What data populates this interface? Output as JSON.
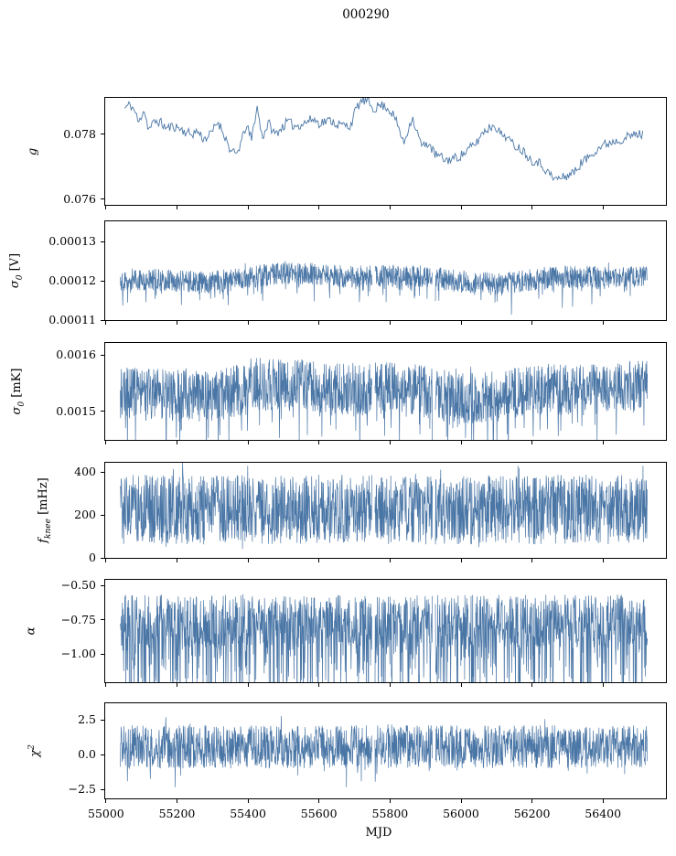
{
  "figure": {
    "title": "000290"
  },
  "chart_data": {
    "type": "line",
    "title": "000290",
    "xlabel": "MJD",
    "line_color": "#4a76a6",
    "x_axis": {
      "lim": [
        54995,
        56580
      ],
      "ticks": [
        55000,
        55200,
        55400,
        55600,
        55800,
        56000,
        56200,
        56400
      ],
      "tick_labels": [
        "55000",
        "55200",
        "55400",
        "55600",
        "55800",
        "56000",
        "56200",
        "56400"
      ]
    },
    "data_gaps": [
      [
        55749,
        55757
      ],
      [
        55920,
        55928
      ]
    ],
    "panels": [
      {
        "id": "g",
        "ylabel": {
          "sym": "g",
          "sub": "",
          "sup": "",
          "unit": ""
        },
        "ylim": [
          0.0758,
          0.07915
        ],
        "yticks": [
          {
            "v": 0.076,
            "label": "0.076"
          },
          {
            "v": 0.078,
            "label": "0.078"
          }
        ],
        "series": {
          "kind": "trend",
          "x_range": [
            55052,
            56512
          ],
          "points": 470,
          "jitter": 0.00015,
          "seed": 11,
          "trend": [
            [
              55052,
              0.0788
            ],
            [
              55068,
              0.07892
            ],
            [
              55082,
              0.0787
            ],
            [
              55092,
              0.07832
            ],
            [
              55106,
              0.0788
            ],
            [
              55120,
              0.07815
            ],
            [
              55138,
              0.0784
            ],
            [
              55152,
              0.07838
            ],
            [
              55170,
              0.07818
            ],
            [
              55188,
              0.07825
            ],
            [
              55205,
              0.0782
            ],
            [
              55222,
              0.07808
            ],
            [
              55240,
              0.078
            ],
            [
              55258,
              0.0781
            ],
            [
              55275,
              0.07785
            ],
            [
              55295,
              0.078
            ],
            [
              55315,
              0.0784
            ],
            [
              55333,
              0.078
            ],
            [
              55352,
              0.07745
            ],
            [
              55368,
              0.07738
            ],
            [
              55382,
              0.0778
            ],
            [
              55395,
              0.07828
            ],
            [
              55410,
              0.07784
            ],
            [
              55425,
              0.07886
            ],
            [
              55440,
              0.0779
            ],
            [
              55458,
              0.07835
            ],
            [
              55475,
              0.078
            ],
            [
              55495,
              0.0782
            ],
            [
              55512,
              0.0784
            ],
            [
              55530,
              0.07825
            ],
            [
              55548,
              0.0783
            ],
            [
              55565,
              0.07838
            ],
            [
              55582,
              0.07848
            ],
            [
              55600,
              0.07835
            ],
            [
              55618,
              0.0784
            ],
            [
              55635,
              0.07843
            ],
            [
              55652,
              0.0783
            ],
            [
              55670,
              0.07828
            ],
            [
              55688,
              0.07825
            ],
            [
              55705,
              0.0788
            ],
            [
              55722,
              0.07905
            ],
            [
              55738,
              0.07898
            ],
            [
              55755,
              0.07878
            ],
            [
              55772,
              0.0789
            ],
            [
              55790,
              0.07885
            ],
            [
              55808,
              0.07862
            ],
            [
              55825,
              0.0782
            ],
            [
              55838,
              0.0777
            ],
            [
              55850,
              0.0781
            ],
            [
              55862,
              0.07855
            ],
            [
              55878,
              0.078
            ],
            [
              55892,
              0.0776
            ],
            [
              55908,
              0.07775
            ],
            [
              55925,
              0.0774
            ],
            [
              55942,
              0.0773
            ],
            [
              55958,
              0.0772
            ],
            [
              55975,
              0.07725
            ],
            [
              55992,
              0.0773
            ],
            [
              56010,
              0.07742
            ],
            [
              56028,
              0.0776
            ],
            [
              56045,
              0.07775
            ],
            [
              56062,
              0.07808
            ],
            [
              56080,
              0.0782
            ],
            [
              56095,
              0.0783
            ],
            [
              56112,
              0.078
            ],
            [
              56128,
              0.07795
            ],
            [
              56145,
              0.0777
            ],
            [
              56162,
              0.0776
            ],
            [
              56180,
              0.07745
            ],
            [
              56198,
              0.0772
            ],
            [
              56215,
              0.07718
            ],
            [
              56232,
              0.077
            ],
            [
              56248,
              0.0768
            ],
            [
              56262,
              0.07662
            ],
            [
              56278,
              0.07665
            ],
            [
              56292,
              0.07668
            ],
            [
              56308,
              0.0768
            ],
            [
              56322,
              0.07685
            ],
            [
              56338,
              0.07712
            ],
            [
              56355,
              0.07725
            ],
            [
              56372,
              0.07745
            ],
            [
              56390,
              0.0776
            ],
            [
              56408,
              0.0777
            ],
            [
              56425,
              0.07778
            ],
            [
              56442,
              0.07782
            ],
            [
              56460,
              0.07788
            ],
            [
              56478,
              0.07795
            ],
            [
              56495,
              0.078
            ],
            [
              56512,
              0.078
            ]
          ]
        }
      },
      {
        "id": "sigma0-V",
        "ylabel": {
          "sym": "σ",
          "sub": "0",
          "sup": "",
          "unit": " [V]"
        },
        "ylim": [
          0.0001098,
          0.0001354
        ],
        "yticks": [
          {
            "v": 0.00011,
            "label": "0.00011"
          },
          {
            "v": 0.00012,
            "label": "0.00012"
          },
          {
            "v": 0.00013,
            "label": "0.00013"
          }
        ],
        "series": {
          "kind": "noise",
          "x_range": [
            55040,
            56525
          ],
          "points": 1700,
          "seed": 22,
          "center": 0.0001208,
          "core": 2.8e-06,
          "slow_amp": 9e-07,
          "slow_period": 950,
          "slow_phase": 4.0,
          "down_prob": 0.1,
          "down_max": 6.2e-06,
          "up_prob": 0.02,
          "up_max": 1.2e-06
        }
      },
      {
        "id": "sigma0-mK",
        "ylabel": {
          "sym": "σ",
          "sub": "0",
          "sup": "",
          "unit": " [mK]"
        },
        "ylim": [
          0.001448,
          0.001623
        ],
        "yticks": [
          {
            "v": 0.0015,
            "label": "0.0015"
          },
          {
            "v": 0.0016,
            "label": "0.0016"
          }
        ],
        "series": {
          "kind": "noise",
          "x_range": [
            55040,
            56525
          ],
          "points": 1700,
          "seed": 33,
          "center": 0.001537,
          "core": 4.6e-05,
          "slow_amp": 9e-06,
          "slow_period": 900,
          "slow_phase": 4.0,
          "down_prob": 0.12,
          "down_max": 8e-05,
          "up_prob": 0.03,
          "up_max": 2e-05
        }
      },
      {
        "id": "fknee",
        "ylabel": {
          "sym": "f",
          "sub": "knee",
          "sup": "",
          "unit": " [mHz]"
        },
        "ylim": [
          -4,
          447
        ],
        "yticks": [
          {
            "v": 0,
            "label": "0"
          },
          {
            "v": 200,
            "label": "200"
          },
          {
            "v": 400,
            "label": "400"
          }
        ],
        "series": {
          "kind": "noise",
          "x_range": [
            55040,
            56525
          ],
          "points": 1700,
          "seed": 44,
          "center": 225,
          "core": 162,
          "slow_amp": 0,
          "slow_period": 1000,
          "slow_phase": 0,
          "down_prob": 0.04,
          "down_max": 45,
          "up_prob": 0.05,
          "up_max": 62
        }
      },
      {
        "id": "alpha",
        "ylabel": {
          "sym": "α",
          "sub": "",
          "sup": "",
          "unit": ""
        },
        "ylim": [
          -1.213,
          -0.453
        ],
        "yticks": [
          {
            "v": -1.0,
            "label": "−1.00"
          },
          {
            "v": -0.75,
            "label": "−0.75"
          },
          {
            "v": -0.5,
            "label": "−0.50"
          }
        ],
        "series": {
          "kind": "noise",
          "x_range": [
            55040,
            56525
          ],
          "points": 1700,
          "seed": 55,
          "center": -0.76,
          "core": 0.195,
          "slow_amp": 0,
          "slow_period": 1000,
          "slow_phase": 0,
          "down_prob": 0.32,
          "down_max": 0.6,
          "up_prob": 0.02,
          "up_max": 0.03
        }
      },
      {
        "id": "chi2",
        "ylabel": {
          "sym": "χ",
          "sub": "",
          "sup": "2",
          "unit": ""
        },
        "ylim": [
          -3.22,
          3.75
        ],
        "yticks": [
          {
            "v": -2.5,
            "label": "−2.5"
          },
          {
            "v": 0.0,
            "label": "0.0"
          },
          {
            "v": 2.5,
            "label": "2.5"
          }
        ],
        "series": {
          "kind": "noise",
          "x_range": [
            55040,
            56525
          ],
          "points": 1700,
          "seed": 66,
          "center": 0.55,
          "core": 1.55,
          "slow_amp": 0,
          "slow_period": 1000,
          "slow_phase": 0,
          "down_prob": 0.05,
          "down_max": 1.5,
          "up_prob": 0.05,
          "up_max": 1.15
        }
      }
    ]
  }
}
